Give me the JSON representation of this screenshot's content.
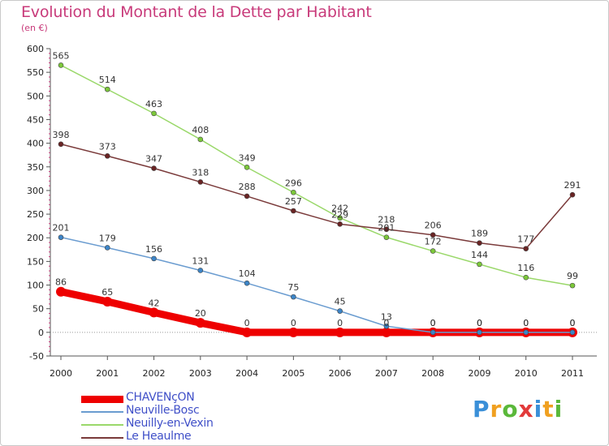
{
  "title": "Evolution du Montant de la Dette par Habitant",
  "subtitle": "(en €)",
  "logo": {
    "text": "Proxiti",
    "letters": [
      "P",
      "r",
      "o",
      "x",
      "i",
      "t",
      "i"
    ],
    "colors": [
      "#3a8fd8",
      "#f0a020",
      "#5ab83a",
      "#e23a3a",
      "#3a8fd8",
      "#f0a020",
      "#5ab83a"
    ]
  },
  "chart_data": {
    "type": "line",
    "title": "Evolution du Montant de la Dette par Habitant",
    "ylabel": "(en €)",
    "xlabel": "",
    "x": [
      2000,
      2001,
      2002,
      2003,
      2004,
      2005,
      2006,
      2007,
      2008,
      2009,
      2010,
      2011
    ],
    "ylim": [
      -50,
      600
    ],
    "yticks": [
      -50,
      0,
      50,
      100,
      150,
      200,
      250,
      300,
      350,
      400,
      450,
      500,
      550,
      600
    ],
    "grid": false,
    "legend_position": "bottom-left",
    "series": [
      {
        "name": "CHAVENçON",
        "values": [
          86,
          65,
          42,
          20,
          0,
          0,
          0,
          0,
          0,
          0,
          0,
          0
        ],
        "labels": [
          "86",
          "65",
          "42",
          "20",
          "0",
          "0",
          "0",
          "0",
          "0",
          "0",
          "0",
          "0"
        ],
        "color": "#ee0000",
        "marker_color": "#ee0000"
      },
      {
        "name": "Neuville-Bosc",
        "values": [
          201,
          179,
          156,
          131,
          104,
          75,
          45,
          13,
          0,
          0,
          0,
          0
        ],
        "labels": [
          "201",
          "179",
          "156",
          "131",
          "104",
          "75",
          "45",
          "13",
          "0",
          "0",
          "0",
          "0"
        ],
        "color": "#6a9cd0",
        "marker_color": "#3c85c8"
      },
      {
        "name": "Neuilly-en-Vexin",
        "values": [
          565,
          514,
          463,
          408,
          349,
          296,
          242,
          201,
          172,
          144,
          116,
          99
        ],
        "labels": [
          "565",
          "514",
          "463",
          "408",
          "349",
          "296",
          "242",
          "201",
          "172",
          "144",
          "116",
          "99"
        ],
        "color": "#9ad86a",
        "marker_color": "#7cc83a"
      },
      {
        "name": "Le Heaulme",
        "values": [
          398,
          373,
          347,
          318,
          288,
          257,
          229,
          218,
          206,
          189,
          177,
          291
        ],
        "labels": [
          "398",
          "373",
          "347",
          "318",
          "288",
          "257",
          "229",
          "218",
          "206",
          "189",
          "177",
          "291"
        ],
        "color": "#7a3a3a",
        "marker_color": "#6a2424"
      }
    ]
  }
}
